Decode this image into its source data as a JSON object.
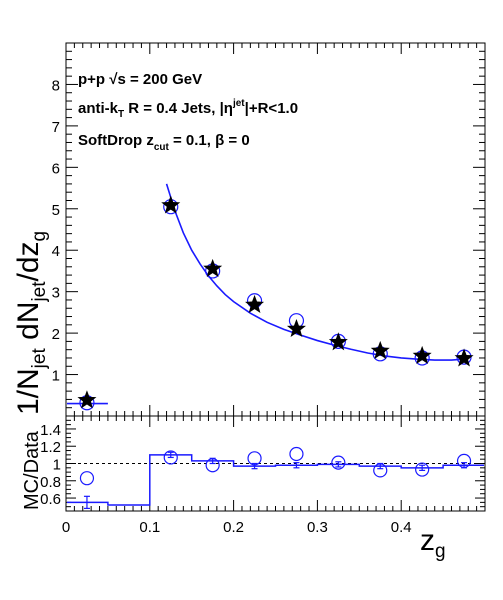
{
  "annotations": {
    "line1": "p+p  √s = 200 GeV",
    "line2_a": "anti-k",
    "line2_sub": "T",
    "line2_b": " R = 0.4 Jets, |η",
    "line2_sup": "jet",
    "line2_c": "|+R<1.0",
    "line3_a": "SoftDrop z",
    "line3_sub": "cut",
    "line3_b": " = 0.1,  β = 0"
  },
  "ylabel": {
    "p1": "1/N",
    "p1sub": "jet",
    "p2": " dN",
    "p2sub": "jet",
    "p3": "/dz",
    "p3sub": "g"
  },
  "xlabel": {
    "main": "z",
    "sub": "g"
  },
  "ratio_ylabel": "MC/Data",
  "colors": {
    "mc": "#1a1aff",
    "data": "#000000",
    "reference": "#000000"
  },
  "chart_data": [
    {
      "type": "scatter",
      "panel": "main",
      "xlim": [
        0,
        0.5
      ],
      "ylim": [
        0,
        9
      ],
      "yticks": [
        "1",
        "2",
        "3",
        "4",
        "5",
        "6",
        "7",
        "8"
      ],
      "yticks_values": [
        1,
        2,
        3,
        4,
        5,
        6,
        7,
        8
      ],
      "series": [
        {
          "marker": "star",
          "x": [
            0.025,
            0.125,
            0.175,
            0.225,
            0.275,
            0.325,
            0.375,
            0.425,
            0.475
          ],
          "values": [
            0.38,
            5.08,
            3.55,
            2.68,
            2.1,
            1.78,
            1.57,
            1.45,
            1.39
          ]
        },
        {
          "marker": "open-circle",
          "x": [
            0.025,
            0.125,
            0.175,
            0.225,
            0.275,
            0.325,
            0.375,
            0.425,
            0.475
          ],
          "values": [
            0.32,
            5.05,
            3.5,
            2.78,
            2.3,
            1.8,
            1.5,
            1.4,
            1.42
          ]
        },
        {
          "type": "line",
          "x": [
            0.12,
            0.13,
            0.14,
            0.15,
            0.16,
            0.17,
            0.18,
            0.19,
            0.2,
            0.22,
            0.24,
            0.26,
            0.28,
            0.3,
            0.32,
            0.34,
            0.36,
            0.38,
            0.4,
            0.42,
            0.44,
            0.46,
            0.48
          ],
          "values": [
            5.6,
            4.95,
            4.42,
            4.0,
            3.67,
            3.38,
            3.14,
            2.93,
            2.76,
            2.48,
            2.26,
            2.09,
            1.95,
            1.82,
            1.71,
            1.61,
            1.52,
            1.45,
            1.4,
            1.37,
            1.35,
            1.35,
            1.38
          ]
        },
        {
          "type": "line",
          "x": [
            0.0,
            0.05
          ],
          "values": [
            0.3,
            0.3
          ]
        }
      ]
    },
    {
      "type": "bar",
      "panel": "ratio",
      "xlim": [
        0,
        0.5
      ],
      "ylim": [
        0.45,
        1.55
      ],
      "reference_line": 1.0,
      "xticks": [
        "0",
        "0.1",
        "0.2",
        "0.3",
        "0.4"
      ],
      "xticks_values": [
        0,
        0.1,
        0.2,
        0.3,
        0.4
      ],
      "yticks": [
        "0.6",
        "0.8",
        "1",
        "1.2",
        "1.4"
      ],
      "yticks_values": [
        0.6,
        0.8,
        1.0,
        1.2,
        1.4
      ],
      "series": [
        {
          "type": "step",
          "bin_edges": [
            0.0,
            0.05,
            0.1,
            0.15,
            0.2,
            0.25,
            0.3,
            0.35,
            0.4,
            0.45,
            0.5
          ],
          "values": [
            0.55,
            0.52,
            1.1,
            1.03,
            0.97,
            0.98,
            0.99,
            0.97,
            0.95,
            0.98
          ],
          "errors": [
            0.07,
            0,
            0.03,
            0.03,
            0.03,
            0.03,
            0.03,
            0.03,
            0.03,
            0.03
          ]
        },
        {
          "marker": "open-circle",
          "x": [
            0.025,
            0.125,
            0.175,
            0.225,
            0.275,
            0.325,
            0.375,
            0.425,
            0.475
          ],
          "values": [
            0.83,
            1.07,
            0.98,
            1.06,
            1.11,
            1.01,
            0.92,
            0.93,
            1.03
          ]
        }
      ]
    }
  ]
}
